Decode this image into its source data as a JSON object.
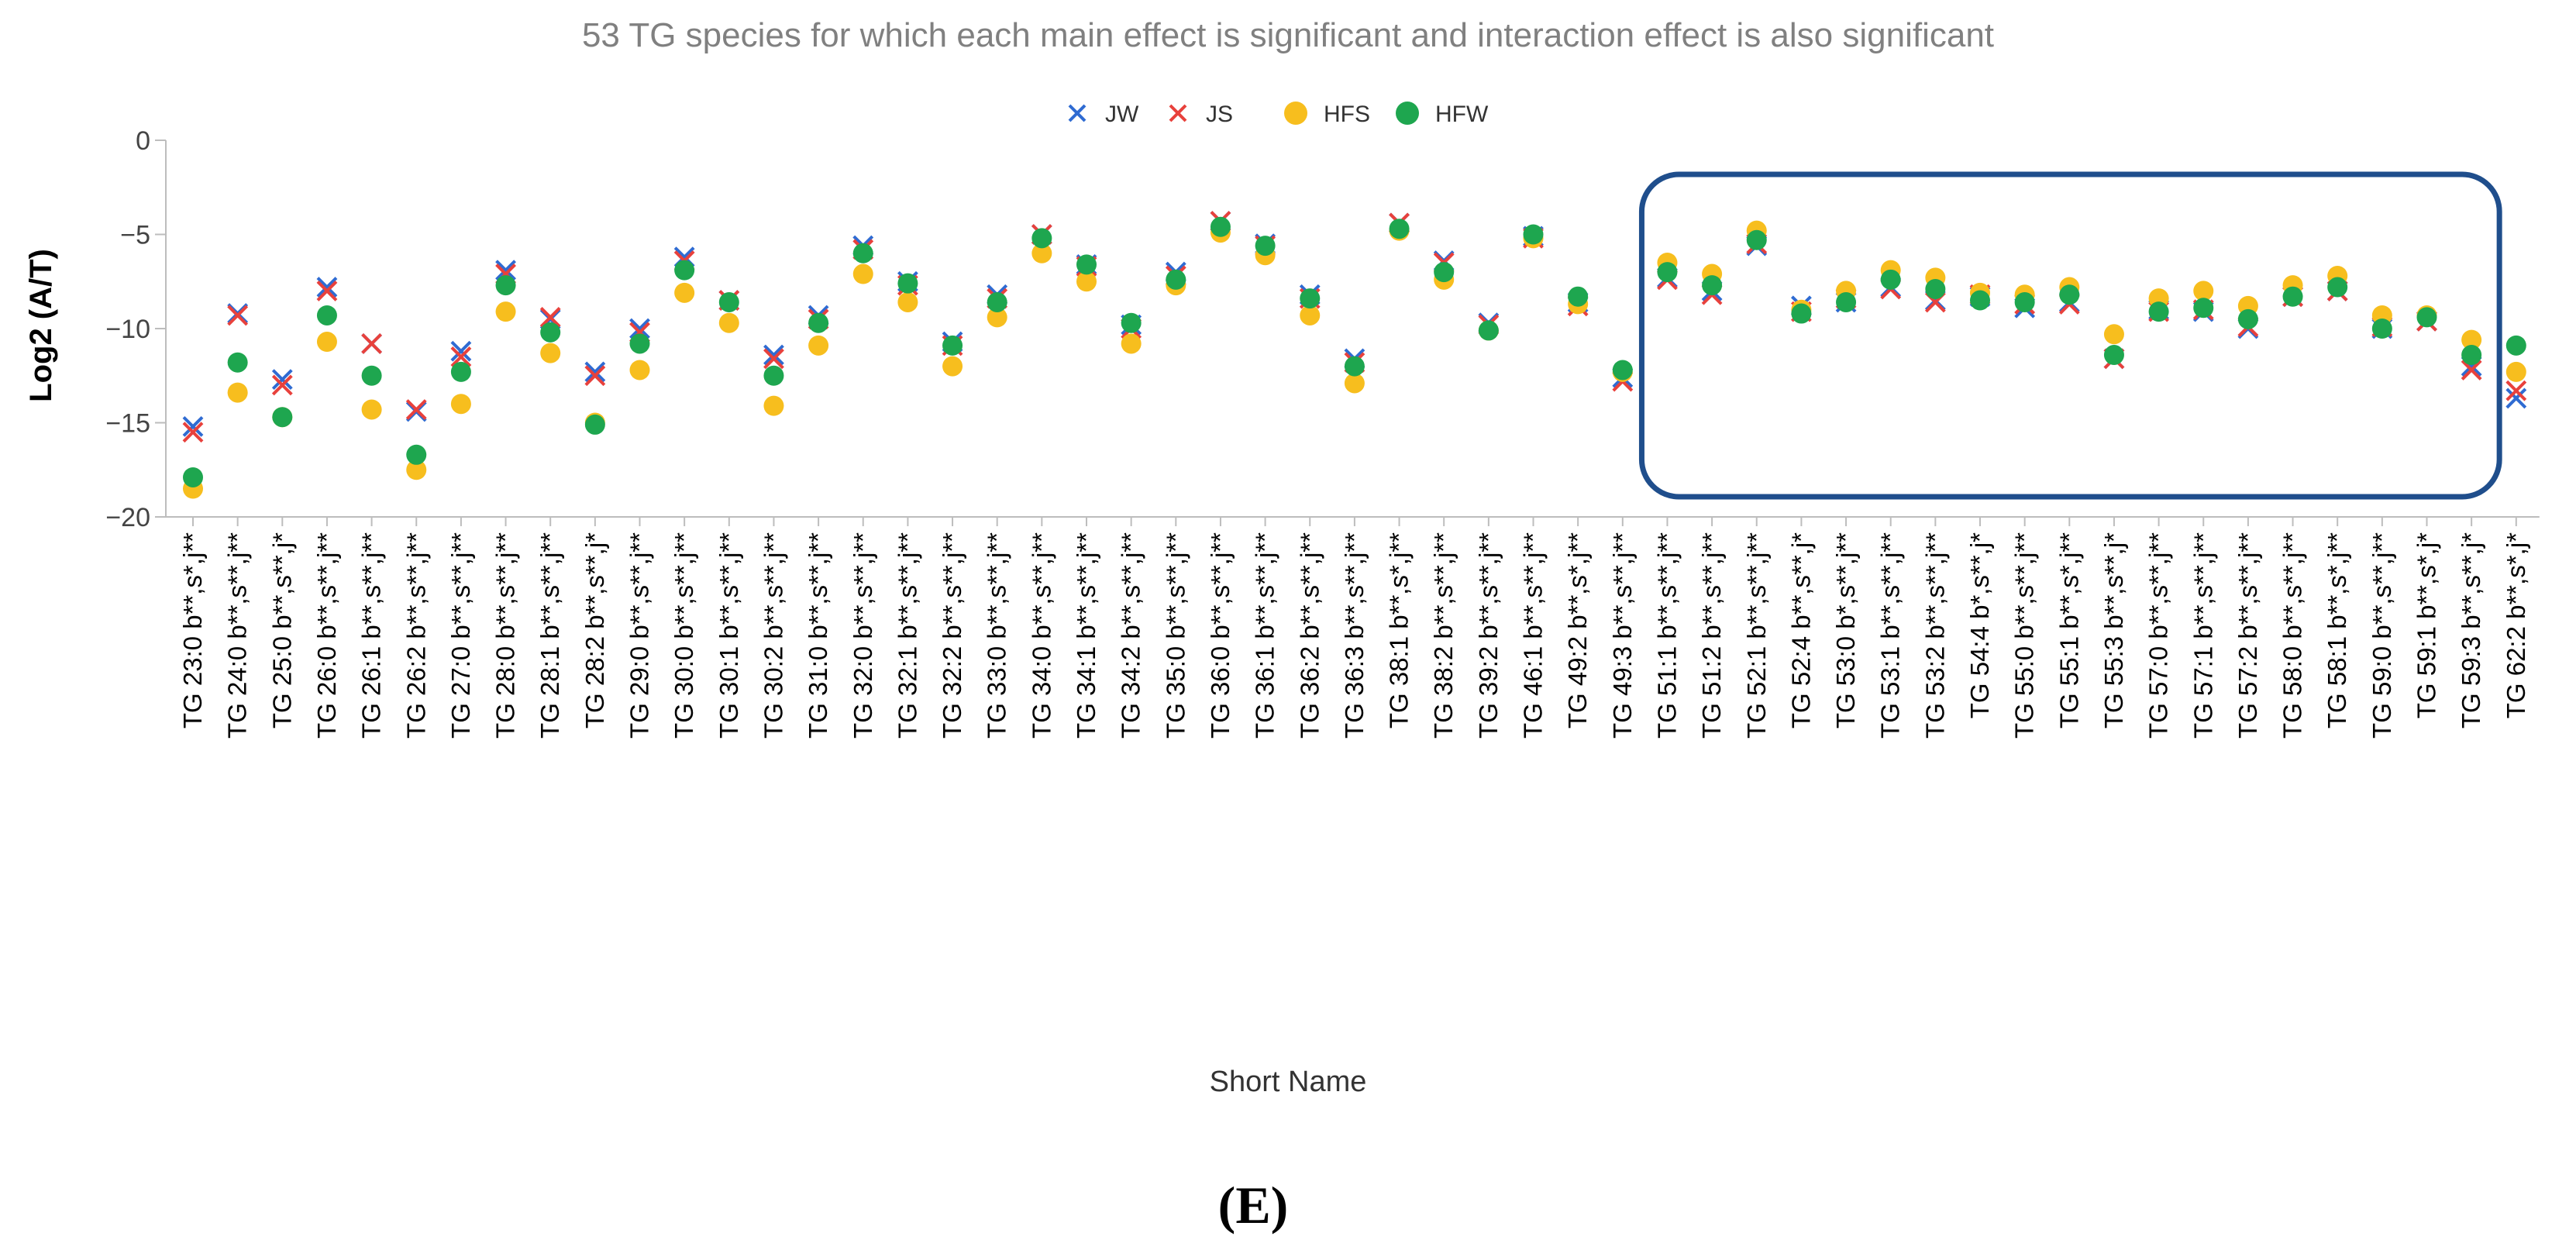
{
  "chart_data": {
    "type": "scatter",
    "title": "53 TG species for which each main effect is significant and interaction effect is also significant",
    "xlabel": "Short Name",
    "ylabel": "Log2 (A/T)",
    "ylim": [
      -20,
      0
    ],
    "yticks": [
      0,
      -5,
      -10,
      -15,
      -20
    ],
    "grid": false,
    "legend_position": "top-center",
    "panel_label": "(E)",
    "highlight_box": {
      "from_category": "TG 51:1 b**,s**,j**",
      "to_category": "TG 59:3 b**,s**,j*",
      "color": "#1f4e8c"
    },
    "categories": [
      "TG 23:0 b**,s*,j**",
      "TG 24:0 b**,s**,j**",
      "TG 25:0 b**,s**,j*",
      "TG 26:0 b**,s**,j**",
      "TG 26:1 b**,s**,j**",
      "TG 26:2 b**,s**,j**",
      "TG 27:0 b**,s**,j**",
      "TG 28:0 b**,s**,j**",
      "TG 28:1 b**,s**,j**",
      "TG 28:2 b**,s**,j*",
      "TG 29:0 b**,s**,j**",
      "TG 30:0 b**,s**,j**",
      "TG 30:1 b**,s**,j**",
      "TG 30:2 b**,s**,j**",
      "TG 31:0 b**,s**,j**",
      "TG 32:0 b**,s**,j**",
      "TG 32:1 b**,s**,j**",
      "TG 32:2 b**,s**,j**",
      "TG 33:0 b**,s**,j**",
      "TG 34:0 b**,s**,j**",
      "TG 34:1 b**,s**,j**",
      "TG 34:2 b**,s**,j**",
      "TG 35:0 b**,s**,j**",
      "TG 36:0 b**,s**,j**",
      "TG 36:1 b**,s**,j**",
      "TG 36:2 b**,s**,j**",
      "TG 36:3 b**,s**,j**",
      "TG 38:1 b**,s*,j**",
      "TG 38:2 b**,s**,j**",
      "TG 39:2 b**,s**,j**",
      "TG 46:1 b**,s**,j**",
      "TG 49:2 b**,s*,j**",
      "TG 49:3 b**,s**,j**",
      "TG 51:1 b**,s**,j**",
      "TG 51:2 b**,s**,j**",
      "TG 52:1 b**,s**,j**",
      "TG 52:4 b**,s**,j*",
      "TG 53:0 b*,s**,j**",
      "TG 53:1 b**,s**,j**",
      "TG 53:2 b**,s**,j**",
      "TG 54:4 b*,s**,j*",
      "TG 55:0 b**,s**,j**",
      "TG 55:1 b**,s*,j**",
      "TG 55:3 b**,s**,j*",
      "TG 57:0 b**,s**,j**",
      "TG 57:1 b**,s**,j**",
      "TG 57:2 b**,s**,j**",
      "TG 58:0 b**,s**,j**",
      "TG 58:1 b**,s*,j**",
      "TG 59:0 b**,s**,j**",
      "TG 59:1 b**,s*,j*",
      "TG 59:3 b**,s**,j*",
      "TG 62:2 b**,s*,j*"
    ],
    "series": [
      {
        "name": "JW",
        "marker": "cross",
        "color": "#2f6bd2",
        "values": [
          -15.2,
          -9.2,
          -12.7,
          -7.8,
          -10.8,
          -14.4,
          -11.2,
          -6.9,
          -9.5,
          -12.3,
          -10.0,
          -6.2,
          -8.5,
          -11.4,
          -9.3,
          -5.6,
          -7.5,
          -10.7,
          -8.2,
          -5.0,
          -6.6,
          -9.8,
          -7.0,
          -4.3,
          -5.5,
          -8.2,
          -11.6,
          -4.4,
          -6.4,
          -9.7,
          -5.1,
          -8.6,
          -12.6,
          -7.3,
          -8.0,
          -5.6,
          -8.8,
          -8.6,
          -7.8,
          -8.5,
          -8.3,
          -8.9,
          -8.6,
          -11.6,
          -9.0,
          -9.1,
          -10.0,
          -8.3,
          -8.0,
          -10.0,
          -9.6,
          -12.0,
          -13.7
        ]
      },
      {
        "name": "JS",
        "marker": "cross",
        "color": "#e8413c",
        "values": [
          -15.5,
          -9.3,
          -13.0,
          -8.0,
          -10.8,
          -14.3,
          -11.5,
          -7.1,
          -9.4,
          -12.5,
          -10.2,
          -6.4,
          -8.5,
          -11.6,
          -9.5,
          -5.8,
          -7.7,
          -10.9,
          -8.4,
          -5.0,
          -6.7,
          -10.0,
          -7.2,
          -4.3,
          -5.6,
          -8.4,
          -11.8,
          -4.4,
          -6.5,
          -9.8,
          -5.2,
          -8.8,
          -12.8,
          -7.4,
          -8.2,
          -5.5,
          -9.1,
          -8.4,
          -7.9,
          -8.6,
          -8.2,
          -8.7,
          -8.7,
          -11.6,
          -9.1,
          -9.0,
          -9.9,
          -8.3,
          -8.0,
          -9.9,
          -9.6,
          -12.2,
          -13.3
        ]
      },
      {
        "name": "HFS",
        "marker": "circle",
        "color": "#f7be1e",
        "values": [
          -18.5,
          -13.4,
          -14.7,
          -10.7,
          -14.3,
          -17.5,
          -14.0,
          -9.1,
          -11.3,
          -15.0,
          -12.2,
          -8.1,
          -9.7,
          -14.1,
          -10.9,
          -7.1,
          -8.6,
          -12.0,
          -9.4,
          -6.0,
          -7.5,
          -10.8,
          -7.7,
          -4.9,
          -6.1,
          -9.3,
          -12.9,
          -4.8,
          -7.4,
          -10.1,
          -5.2,
          -8.7,
          -12.3,
          -6.5,
          -7.1,
          -4.8,
          -9.0,
          -8.0,
          -6.9,
          -7.3,
          -8.1,
          -8.2,
          -7.8,
          -10.3,
          -8.4,
          -8.0,
          -8.8,
          -7.7,
          -7.2,
          -9.3,
          -9.3,
          -10.6,
          -12.3
        ]
      },
      {
        "name": "HFW",
        "marker": "circle",
        "color": "#1ea64f",
        "values": [
          -17.9,
          -11.8,
          -14.7,
          -9.3,
          -12.5,
          -16.7,
          -12.3,
          -7.7,
          -10.2,
          -15.1,
          -10.8,
          -6.9,
          -8.6,
          -12.5,
          -9.7,
          -6.0,
          -7.6,
          -10.9,
          -8.6,
          -5.2,
          -6.6,
          -9.7,
          -7.4,
          -4.6,
          -5.6,
          -8.4,
          -12.0,
          -4.7,
          -7.0,
          -10.1,
          -5.0,
          -8.3,
          -12.2,
          -7.0,
          -7.7,
          -5.3,
          -9.2,
          -8.6,
          -7.4,
          -7.9,
          -8.5,
          -8.6,
          -8.2,
          -11.4,
          -9.1,
          -8.9,
          -9.5,
          -8.3,
          -7.8,
          -10.0,
          -9.4,
          -11.4,
          -10.9
        ]
      }
    ]
  }
}
